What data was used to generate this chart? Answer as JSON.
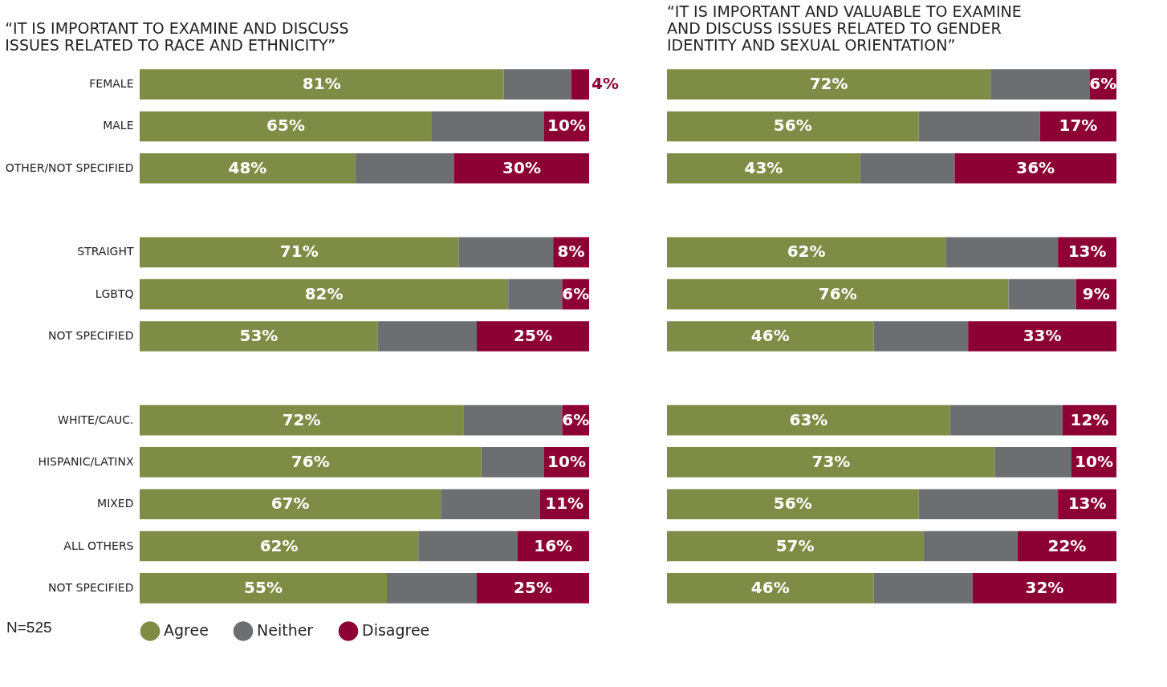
{
  "chart_data": [
    {
      "type": "bar",
      "orientation": "horizontal",
      "stacked": true,
      "title": "“IT IS IMPORTANT TO EXAMINE AND DISCUSS\nISSUES RELATED TO RACE AND ETHNICITY”",
      "categories": [
        "FEMALE",
        "MALE",
        "OTHER/NOT SPECIFIED",
        null,
        "STRAIGHT",
        "LGBTQ",
        "NOT SPECIFIED",
        null,
        "WHITE/CAUC.",
        "HISPANIC/LATINX",
        "MIXED",
        "ALL OTHERS",
        "NOT SPECIFIED"
      ],
      "xlim": [
        0,
        100
      ],
      "tick_labels": "y",
      "legend": "bottom",
      "annotations": [
        "N=525"
      ],
      "series": [
        {
          "name": "Agree",
          "color": "#7f8c45",
          "values": [
            81,
            65,
            48,
            null,
            71,
            82,
            53,
            null,
            72,
            76,
            67,
            62,
            55
          ],
          "value_labels": [
            "81%",
            "65%",
            "48%",
            null,
            "71%",
            "82%",
            "53%",
            null,
            "72%",
            "76%",
            "67%",
            "62%",
            "55%"
          ]
        },
        {
          "name": "Neither",
          "color": "#6d6e72",
          "values": [
            15,
            25,
            22,
            null,
            21,
            12,
            22,
            null,
            22,
            14,
            22,
            22,
            20
          ]
        },
        {
          "name": "Disagree",
          "color": "#8c0033",
          "values": [
            4,
            10,
            30,
            null,
            8,
            6,
            25,
            null,
            6,
            10,
            11,
            16,
            25
          ],
          "value_labels": [
            "4%",
            "10%",
            "30%",
            null,
            "8%",
            "6%",
            "25%",
            null,
            "6%",
            "10%",
            "11%",
            "16%",
            "25%"
          ]
        }
      ]
    },
    {
      "type": "bar",
      "orientation": "horizontal",
      "stacked": true,
      "title": "“IT IS IMPORTANT AND VALUABLE TO EXAMINE\nAND DISCUSS ISSUES RELATED TO GENDER\nIDENTITY AND SEXUAL ORIENTATION”",
      "categories": [
        "FEMALE",
        "MALE",
        "OTHER/NOT SPECIFIED",
        null,
        "STRAIGHT",
        "LGBTQ",
        "NOT SPECIFIED",
        null,
        "WHITE/CAUC.",
        "HISPANIC/LATINX",
        "MIXED",
        "ALL OTHERS",
        "NOT SPECIFIED"
      ],
      "xlim": [
        0,
        100
      ],
      "tick_labels": false,
      "series": [
        {
          "name": "Agree",
          "color": "#7f8c45",
          "values": [
            72,
            56,
            43,
            null,
            62,
            76,
            46,
            null,
            63,
            73,
            56,
            57,
            46
          ],
          "value_labels": [
            "72%",
            "56%",
            "43%",
            null,
            "62%",
            "76%",
            "46%",
            null,
            "63%",
            "73%",
            "56%",
            "57%",
            "46%"
          ]
        },
        {
          "name": "Neither",
          "color": "#6d6e72",
          "values": [
            22,
            27,
            21,
            null,
            25,
            15,
            21,
            null,
            25,
            17,
            31,
            21,
            22
          ]
        },
        {
          "name": "Disagree",
          "color": "#8c0033",
          "values": [
            6,
            17,
            36,
            null,
            13,
            9,
            33,
            null,
            12,
            10,
            13,
            22,
            32
          ],
          "value_labels": [
            "6%",
            "17%",
            "36%",
            null,
            "13%",
            "9%",
            "33%",
            null,
            "12%",
            "10%",
            "13%",
            "22%",
            "32%"
          ]
        }
      ]
    }
  ]
}
